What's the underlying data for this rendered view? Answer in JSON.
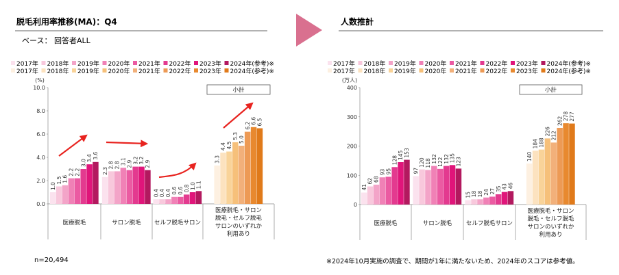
{
  "left_title": "脱毛利用率推移(MA)：Q4",
  "base_label": "ベース： 回答者ALL",
  "right_title": "人数推計",
  "n_label": "n=20,494",
  "footnote": "※2024年10月実施の調査で、期間が1年に満たないため、2024年のスコアは参考値。",
  "subtotal_label": "小計",
  "colors": {
    "pink": [
      "#fbe2ee",
      "#f8c8dc",
      "#f3a4c8",
      "#f081b6",
      "#eb5ba2",
      "#e33a8f",
      "#e0157a",
      "#b3195f"
    ],
    "orange": [
      "#fdf0e1",
      "#fce2bf",
      "#f9d399",
      "#f6c07a",
      "#f2b07a",
      "#ed9a55",
      "#e8892f",
      "#e07a1a"
    ],
    "arrow": "#e8231f",
    "divider_arrow": "#d9708f"
  },
  "chart_data": [
    {
      "type": "bar",
      "ylabel": "(%)",
      "ylim": [
        0,
        10
      ],
      "yticks": [
        "0.0",
        "2.0",
        "4.0",
        "6.0",
        "8.0",
        "10.0"
      ],
      "legend": {
        "row1": [
          "2017年",
          "2018年",
          "2019年",
          "2020年",
          "2021年",
          "2022年",
          "2023年",
          "2024年(参考)※"
        ],
        "row2": [
          "2017年",
          "2018年",
          "2019年",
          "2020年",
          "2021年",
          "2022年",
          "2023年",
          "2024年(参考)※"
        ]
      },
      "categories": [
        "医療脱毛",
        "サロン脱毛",
        "セルフ脱毛サロン",
        "医療脱毛・サロン脱毛・セルフ脱毛サロンのいずれか利用あり"
      ],
      "category_lines": [
        [
          "医療脱毛"
        ],
        [
          "サロン脱毛"
        ],
        [
          "セルフ脱毛サロン"
        ],
        [
          "医療脱毛・サロン",
          "脱毛・セルフ脱毛",
          "サロンのいずれか",
          "利用あり"
        ]
      ],
      "series_values": [
        [
          1.0,
          1.5,
          1.6,
          2.2,
          2.2,
          3.0,
          3.4,
          3.6
        ],
        [
          2.3,
          2.8,
          2.8,
          3.1,
          2.9,
          3.2,
          3.2,
          2.9
        ],
        [
          0.4,
          0.4,
          0.4,
          0.6,
          0.6,
          0.8,
          1.0,
          1.1
        ],
        [
          3.3,
          4.4,
          4.5,
          5.3,
          5.0,
          6.2,
          6.6,
          6.5
        ]
      ],
      "value_labels": [
        [
          "1.0",
          "1.5",
          "1.6",
          "2.2",
          "2.2",
          "3.0",
          "3.4",
          "3.6"
        ],
        [
          "2.3",
          "2.8",
          "2.8",
          "3.1",
          "2.9",
          "3.2",
          "3.2",
          "2.9"
        ],
        [
          "0.4",
          "0.4",
          "0.4",
          "0.6",
          "0.6",
          "0.8",
          "1.0",
          "1.1"
        ],
        [
          "3.3",
          "4.4",
          "4.5",
          "5.3",
          "5.0",
          "6.2",
          "6.6",
          "6.5"
        ]
      ]
    },
    {
      "type": "bar",
      "ylabel": "(万人)",
      "ylim": [
        0,
        400
      ],
      "yticks": [
        "0",
        "100",
        "200",
        "300",
        "400"
      ],
      "legend": {
        "row1": [
          "2017年",
          "2018年",
          "2019年",
          "2020年",
          "2021年",
          "2022年",
          "2023年",
          "2024年(参考)※"
        ],
        "row2": [
          "2017年",
          "2018年",
          "2019年",
          "2020年",
          "2021年",
          "2022年",
          "2023年",
          "2024年(参考)※"
        ]
      },
      "categories": [
        "医療脱毛",
        "サロン脱毛",
        "セルフ脱毛サロン",
        "医療脱毛・サロン脱毛・セルフ脱毛サロンのいずれか利用あり"
      ],
      "category_lines": [
        [
          "医療脱毛"
        ],
        [
          "サロン脱毛"
        ],
        [
          "セルフ脱毛サロン"
        ],
        [
          "医療脱毛・サロン",
          "脱毛・セルフ脱毛",
          "サロンのいずれか",
          "利用あり"
        ]
      ],
      "series_values": [
        [
          41,
          62,
          68,
          93,
          95,
          128,
          145,
          153
        ],
        [
          97,
          120,
          118,
          132,
          122,
          132,
          135,
          123
        ],
        [
          15,
          18,
          18,
          24,
          27,
          35,
          43,
          46
        ],
        [
          140,
          184,
          188,
          226,
          212,
          262,
          278,
          277
        ]
      ],
      "value_labels": [
        [
          "41",
          "62",
          "68",
          "93",
          "95",
          "128",
          "145",
          "153"
        ],
        [
          "97",
          "120",
          "118",
          "132",
          "122",
          "132",
          "135",
          "123"
        ],
        [
          "15",
          "18",
          "18",
          "24",
          "27",
          "35",
          "43",
          "46"
        ],
        [
          "140",
          "184",
          "188",
          "226",
          "212",
          "262",
          "278",
          "277"
        ]
      ]
    }
  ]
}
